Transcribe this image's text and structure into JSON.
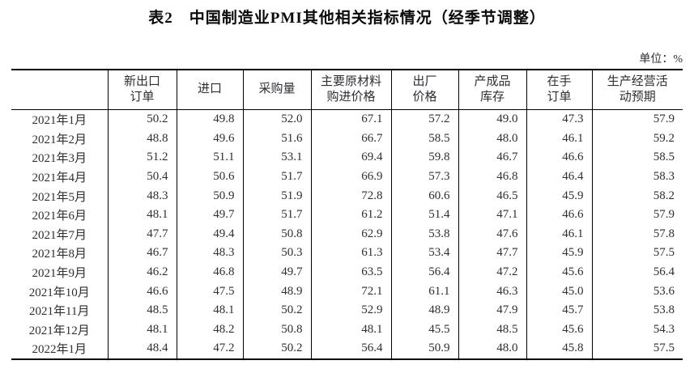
{
  "title": "表2　中国制造业PMI其他相关指标情况（经季节调整）",
  "unit_label": "单位：%",
  "table": {
    "corner_label": "",
    "columns": [
      "新出口\n订单",
      "进口",
      "采购量",
      "主要原材料\n购进价格",
      "出厂\n价格",
      "产成品\n库存",
      "在手\n订单",
      "生产经营活\n动预期"
    ],
    "rows": [
      {
        "label": "2021年1月",
        "values": [
          "50.2",
          "49.8",
          "52.0",
          "67.1",
          "57.2",
          "49.0",
          "47.3",
          "57.9"
        ]
      },
      {
        "label": "2021年2月",
        "values": [
          "48.8",
          "49.6",
          "51.6",
          "66.7",
          "58.5",
          "48.0",
          "46.1",
          "59.2"
        ]
      },
      {
        "label": "2021年3月",
        "values": [
          "51.2",
          "51.1",
          "53.1",
          "69.4",
          "59.8",
          "46.7",
          "46.6",
          "58.5"
        ]
      },
      {
        "label": "2021年4月",
        "values": [
          "50.4",
          "50.6",
          "51.7",
          "66.9",
          "57.3",
          "46.8",
          "46.4",
          "58.3"
        ]
      },
      {
        "label": "2021年5月",
        "values": [
          "48.3",
          "50.9",
          "51.9",
          "72.8",
          "60.6",
          "46.5",
          "45.9",
          "58.2"
        ]
      },
      {
        "label": "2021年6月",
        "values": [
          "48.1",
          "49.7",
          "51.7",
          "61.2",
          "51.4",
          "47.1",
          "46.6",
          "57.9"
        ]
      },
      {
        "label": "2021年7月",
        "values": [
          "47.7",
          "49.4",
          "50.8",
          "62.9",
          "53.8",
          "47.6",
          "46.1",
          "57.8"
        ]
      },
      {
        "label": "2021年8月",
        "values": [
          "46.7",
          "48.3",
          "50.3",
          "61.3",
          "53.4",
          "47.7",
          "45.9",
          "57.5"
        ]
      },
      {
        "label": "2021年9月",
        "values": [
          "46.2",
          "46.8",
          "49.7",
          "63.5",
          "56.4",
          "47.2",
          "45.6",
          "56.4"
        ]
      },
      {
        "label": "2021年10月",
        "values": [
          "46.6",
          "47.5",
          "48.9",
          "72.1",
          "61.1",
          "46.3",
          "45.0",
          "53.6"
        ]
      },
      {
        "label": "2021年11月",
        "values": [
          "48.5",
          "48.1",
          "50.2",
          "52.9",
          "48.9",
          "47.9",
          "45.7",
          "53.8"
        ]
      },
      {
        "label": "2021年12月",
        "values": [
          "48.1",
          "48.2",
          "50.8",
          "48.1",
          "45.5",
          "48.5",
          "45.6",
          "54.3"
        ]
      },
      {
        "label": "2022年1月",
        "values": [
          "48.4",
          "47.2",
          "50.2",
          "56.4",
          "50.9",
          "48.0",
          "45.8",
          "57.5"
        ]
      }
    ]
  },
  "colors": {
    "text": "#2e2e34",
    "title": "#0a0a0a",
    "border": "#000000",
    "background": "#ffffff"
  }
}
